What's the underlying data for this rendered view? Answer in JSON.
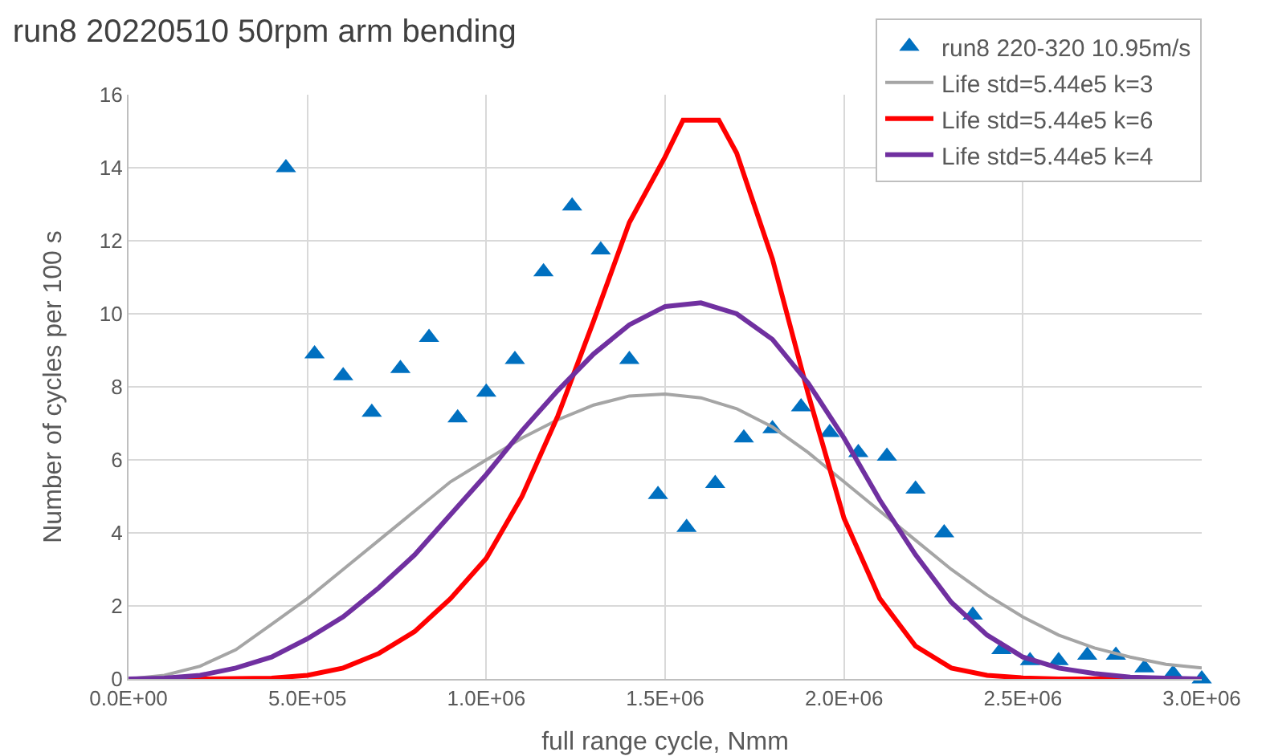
{
  "chart_data": {
    "type": "line",
    "title": "run8 20220510 50rpm arm bending",
    "xlabel": "full range cycle, Nmm",
    "ylabel": "Number of cycles per 100 s",
    "xlim": [
      0,
      3000000
    ],
    "xticks": [
      {
        "value": 0,
        "label": "0.0E+00"
      },
      {
        "value": 500000,
        "label": "5.0E+05"
      },
      {
        "value": 1000000,
        "label": "1.0E+06"
      },
      {
        "value": 1500000,
        "label": "1.5E+06"
      },
      {
        "value": 2000000,
        "label": "2.0E+06"
      },
      {
        "value": 2500000,
        "label": "2.5E+06"
      },
      {
        "value": 3000000,
        "label": "3.0E+06"
      }
    ],
    "ylim": [
      0,
      16
    ],
    "yticks": [
      0,
      2,
      4,
      6,
      8,
      10,
      12,
      14,
      16
    ],
    "grid": true,
    "legend": "top right",
    "series": [
      {
        "name": "run8 220-320 10.95m/s",
        "type": "scatter",
        "marker": "triangle",
        "color": "#0070c0",
        "x": [
          440000,
          520000,
          600000,
          680000,
          760000,
          840000,
          920000,
          1000000,
          1080000,
          1160000,
          1240000,
          1320000,
          1400000,
          1480000,
          1560000,
          1640000,
          1720000,
          1800000,
          1880000,
          1960000,
          2040000,
          2120000,
          2200000,
          2280000,
          2360000,
          2440000,
          2520000,
          2600000,
          2680000,
          2760000,
          2840000,
          2920000,
          3000000
        ],
        "values": [
          14.0,
          8.9,
          8.3,
          7.3,
          8.5,
          9.35,
          7.15,
          7.85,
          8.75,
          11.15,
          12.95,
          11.75,
          8.75,
          5.05,
          4.15,
          5.35,
          6.6,
          6.85,
          7.45,
          6.75,
          6.2,
          6.1,
          5.2,
          4.0,
          1.75,
          0.8,
          0.5,
          0.5,
          0.65,
          0.65,
          0.3,
          0.15,
          0
        ]
      },
      {
        "name": "Life std=5.44e5 k=3",
        "color": "#a5a5a5",
        "x": [
          0,
          100000,
          200000,
          300000,
          400000,
          500000,
          600000,
          700000,
          800000,
          900000,
          1000000,
          1100000,
          1200000,
          1300000,
          1400000,
          1500000,
          1600000,
          1700000,
          1800000,
          1900000,
          2000000,
          2100000,
          2200000,
          2300000,
          2400000,
          2500000,
          2600000,
          2700000,
          2800000,
          2900000,
          3000000
        ],
        "values": [
          0,
          0.1,
          0.35,
          0.8,
          1.5,
          2.2,
          3.0,
          3.8,
          4.6,
          5.4,
          6.0,
          6.6,
          7.1,
          7.5,
          7.75,
          7.8,
          7.7,
          7.4,
          6.9,
          6.2,
          5.4,
          4.6,
          3.8,
          3.0,
          2.3,
          1.7,
          1.2,
          0.85,
          0.6,
          0.4,
          0.3
        ]
      },
      {
        "name": "Life std=5.44e5 k=6",
        "color": "#ff0000",
        "x": [
          0,
          100000,
          200000,
          300000,
          400000,
          500000,
          600000,
          700000,
          800000,
          900000,
          1000000,
          1100000,
          1200000,
          1300000,
          1400000,
          1500000,
          1550000,
          1650000,
          1700000,
          1800000,
          1900000,
          2000000,
          2100000,
          2200000,
          2300000,
          2400000,
          2500000,
          2600000,
          2700000,
          2800000,
          2900000,
          3000000
        ],
        "values": [
          0,
          0,
          0,
          0.01,
          0.02,
          0.1,
          0.3,
          0.7,
          1.3,
          2.2,
          3.3,
          5.0,
          7.2,
          9.8,
          12.5,
          14.3,
          15.3,
          15.3,
          14.4,
          11.5,
          7.8,
          4.4,
          2.2,
          0.9,
          0.3,
          0.1,
          0.03,
          0,
          0,
          0,
          0,
          0
        ]
      },
      {
        "name": "Life std=5.44e5 k=4",
        "color": "#7030a0",
        "x": [
          0,
          100000,
          200000,
          300000,
          400000,
          500000,
          600000,
          700000,
          800000,
          900000,
          1000000,
          1100000,
          1200000,
          1300000,
          1400000,
          1500000,
          1600000,
          1700000,
          1800000,
          1900000,
          2000000,
          2100000,
          2200000,
          2300000,
          2400000,
          2500000,
          2600000,
          2700000,
          2800000,
          2900000,
          3000000
        ],
        "values": [
          0,
          0.02,
          0.1,
          0.3,
          0.6,
          1.1,
          1.7,
          2.5,
          3.4,
          4.5,
          5.6,
          6.8,
          7.9,
          8.9,
          9.7,
          10.2,
          10.3,
          10.0,
          9.3,
          8.1,
          6.6,
          4.9,
          3.4,
          2.1,
          1.2,
          0.6,
          0.3,
          0.15,
          0.05,
          0.02,
          0
        ]
      }
    ]
  }
}
